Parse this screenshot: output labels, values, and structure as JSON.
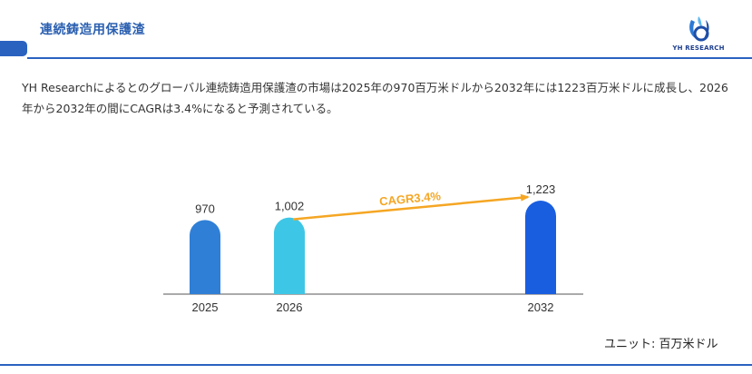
{
  "header": {
    "title": "連続鋳造用保護渣",
    "logo_text": "YH RESEARCH",
    "accent_color": "#2a62c0"
  },
  "description": "YH Researchによるとのグローバル連続鋳造用保護渣の市場は2025年の970百万米ドルから2032年には1223百万米ドルに成長し、2026年から2032年の間にCAGRは3.4%になると予測されている。",
  "chart_data": {
    "type": "bar",
    "categories": [
      "2025",
      "2026",
      "2032"
    ],
    "values": [
      970,
      1002,
      1223
    ],
    "value_labels": [
      "970",
      "1,002",
      "1,223"
    ],
    "bar_colors": [
      "#2f7fd6",
      "#3ec6e6",
      "#1a5ee0"
    ],
    "annotation": {
      "text": "CAGR3.4%",
      "from": "2026",
      "to": "2032",
      "color": "#f5a623"
    },
    "unit": "ユニット: 百万米ドル",
    "grid": false,
    "legend": "none"
  }
}
